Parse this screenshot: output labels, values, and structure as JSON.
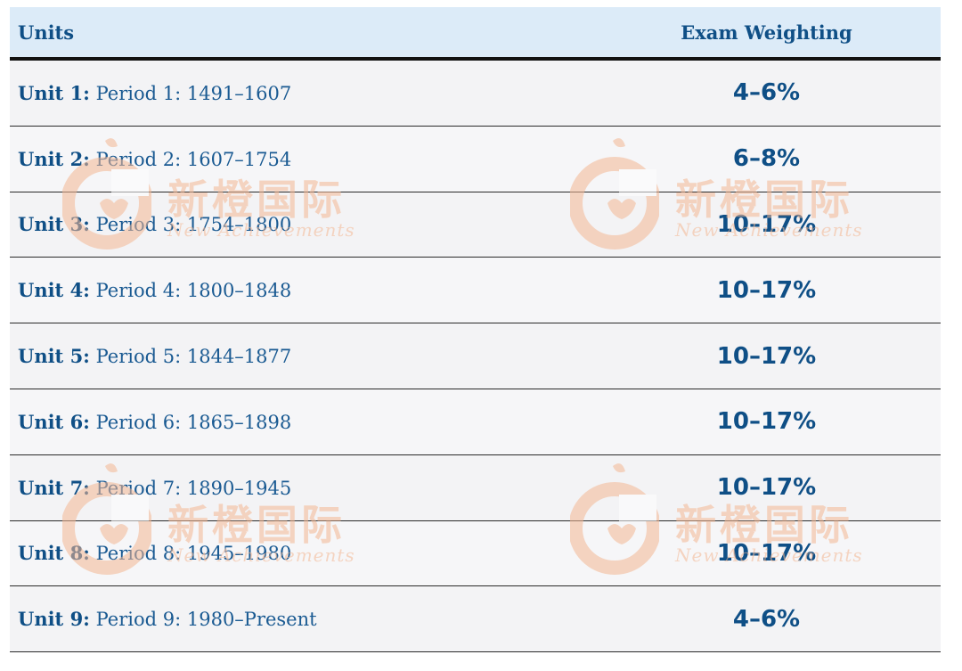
{
  "header": {
    "units": "Units",
    "weighting": "Exam Weighting"
  },
  "rows": [
    {
      "unit": "Unit 1:",
      "period": "Period 1: 1491–1607",
      "weight": "4–6%"
    },
    {
      "unit": "Unit 2:",
      "period": "Period 2: 1607–1754",
      "weight": "6–8%"
    },
    {
      "unit": "Unit 3:",
      "period": "Period 3: 1754–1800",
      "weight": "10–17%"
    },
    {
      "unit": "Unit 4:",
      "period": "Period 4: 1800–1848",
      "weight": "10–17%"
    },
    {
      "unit": "Unit 5:",
      "period": "Period 5: 1844–1877",
      "weight": "10–17%"
    },
    {
      "unit": "Unit 6:",
      "period": "Period 6: 1865–1898",
      "weight": "10–17%"
    },
    {
      "unit": "Unit 7:",
      "period": "Period 7: 1890–1945",
      "weight": "10–17%"
    },
    {
      "unit": "Unit 8:",
      "period": "Period 8: 1945–1980",
      "weight": "10–17%"
    },
    {
      "unit": "Unit 9:",
      "period": "Period 9: 1980–Present",
      "weight": "4–6%"
    }
  ],
  "watermark": {
    "brand_cn": "新橙国际",
    "brand_en": "New Achievements"
  },
  "colors": {
    "header_bg": "#dcebf8",
    "text_blue": "#0f4f86",
    "watermark": "#f4b894"
  }
}
